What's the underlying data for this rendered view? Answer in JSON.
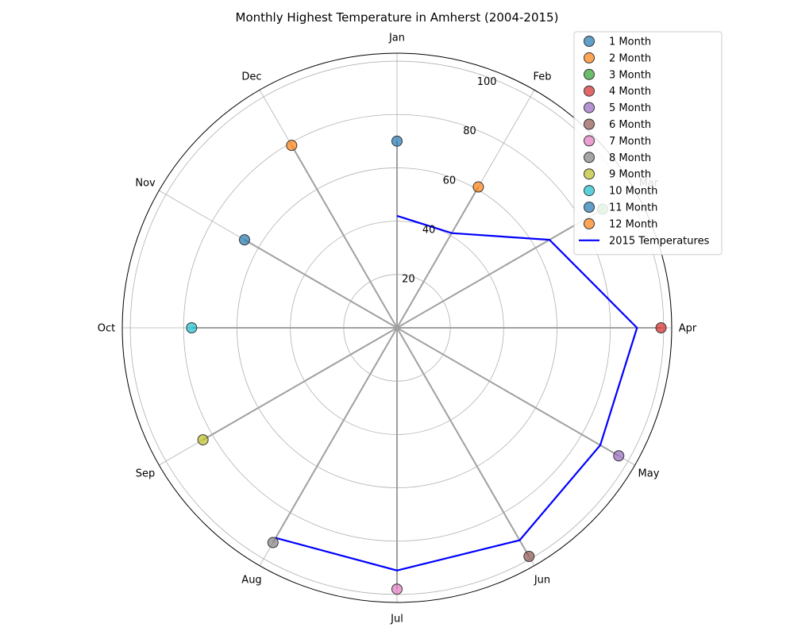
{
  "chart_data": {
    "type": "polar-scatter-line",
    "title": "Monthly Highest Temperature in Amherst (2004-2015)",
    "months": [
      "Jan",
      "Feb",
      "Mar",
      "Apr",
      "May",
      "Jun",
      "Jul",
      "Aug",
      "Sep",
      "Oct",
      "Nov",
      "Dec"
    ],
    "r_ticks": [
      20,
      40,
      60,
      80,
      100
    ],
    "r_lim": [
      0,
      103
    ],
    "grid": true,
    "highest_series": [
      {
        "name": "1 Month",
        "month": "Jan",
        "value": 70,
        "color": "#1f77b4"
      },
      {
        "name": "2 Month",
        "month": "Feb",
        "value": 61,
        "color": "#ff7f0e"
      },
      {
        "name": "3 Month",
        "month": "Mar",
        "value": 89,
        "color": "#2ca02c"
      },
      {
        "name": "4 Month",
        "month": "Apr",
        "value": 99,
        "color": "#d62728"
      },
      {
        "name": "5 Month",
        "month": "May",
        "value": 96,
        "color": "#9467bd"
      },
      {
        "name": "6 Month",
        "month": "Jun",
        "value": 99,
        "color": "#8c564b"
      },
      {
        "name": "7 Month",
        "month": "Jul",
        "value": 98,
        "color": "#e377c2"
      },
      {
        "name": "8 Month",
        "month": "Aug",
        "value": 93,
        "color": "#7f7f7f"
      },
      {
        "name": "9 Month",
        "month": "Sep",
        "value": 84,
        "color": "#bcbd22"
      },
      {
        "name": "10 Month",
        "month": "Oct",
        "value": 77,
        "color": "#17becf"
      },
      {
        "name": "11 Month",
        "month": "Nov",
        "value": 66,
        "color": "#1f77b4"
      },
      {
        "name": "12 Month",
        "month": "Dec",
        "value": 79,
        "color": "#ff7f0e"
      }
    ],
    "line_series": {
      "name": "2015 Temperatures",
      "color": "#0000ff",
      "months": [
        "Jan",
        "Feb",
        "Mar",
        "Apr",
        "May",
        "Jun",
        "Jul",
        "Aug"
      ],
      "values": [
        42,
        41,
        66,
        90,
        88,
        92,
        91,
        91
      ]
    },
    "legend_position": "top-right"
  }
}
